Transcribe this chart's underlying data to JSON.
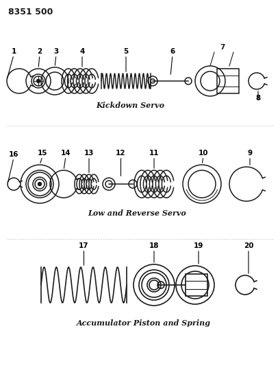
{
  "title_code": "8351 500",
  "bg_color": "#ffffff",
  "line_color": "#1a1a1a",
  "section1_label": "Kickdown Servo",
  "section2_label": "Low and Reverse Servo",
  "section3_label": "Accumulator Piston and Spring"
}
